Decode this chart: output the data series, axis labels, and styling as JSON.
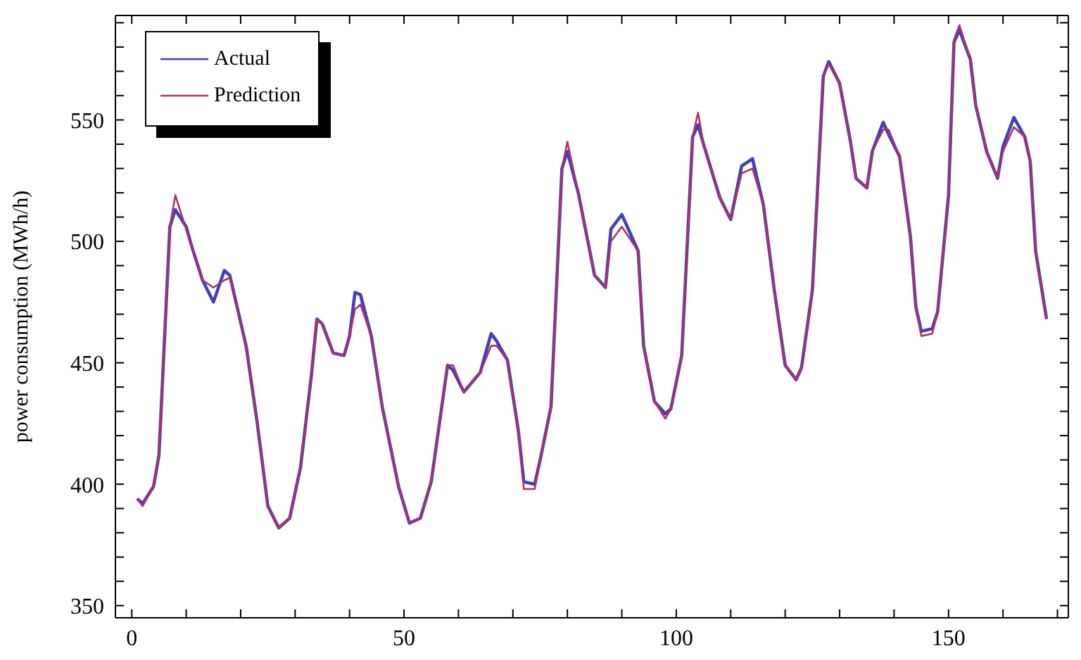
{
  "chart_data": {
    "type": "line",
    "ylabel": "power consumption (MWh/h)",
    "xlim": [
      -3,
      172
    ],
    "ylim": [
      345,
      593
    ],
    "xticks": [
      0,
      {
        "value": 10,
        "label": null
      },
      {
        "value": 20,
        "label": null
      },
      {
        "value": 30,
        "label": null
      },
      {
        "value": 40,
        "label": null
      },
      50,
      {
        "value": 60,
        "label": null
      },
      {
        "value": 70,
        "label": null
      },
      {
        "value": 80,
        "label": null
      },
      {
        "value": 90,
        "label": null
      },
      100,
      {
        "value": 110,
        "label": null
      },
      {
        "value": 120,
        "label": null
      },
      {
        "value": 130,
        "label": null
      },
      {
        "value": 140,
        "label": null
      },
      150,
      {
        "value": 160,
        "label": null
      },
      {
        "value": 170,
        "label": null
      }
    ],
    "yticks": [
      350,
      {
        "value": 360,
        "label": null
      },
      {
        "value": 370,
        "label": null
      },
      {
        "value": 380,
        "label": null
      },
      {
        "value": 390,
        "label": null
      },
      400,
      {
        "value": 410,
        "label": null
      },
      {
        "value": 420,
        "label": null
      },
      {
        "value": 430,
        "label": null
      },
      {
        "value": 440,
        "label": null
      },
      450,
      {
        "value": 460,
        "label": null
      },
      {
        "value": 470,
        "label": null
      },
      {
        "value": 480,
        "label": null
      },
      {
        "value": 490,
        "label": null
      },
      500,
      {
        "value": 510,
        "label": null
      },
      {
        "value": 520,
        "label": null
      },
      {
        "value": 530,
        "label": null
      },
      {
        "value": 540,
        "label": null
      },
      550,
      {
        "value": 560,
        "label": null
      },
      {
        "value": 570,
        "label": null
      },
      {
        "value": 580,
        "label": null
      },
      {
        "value": 590,
        "label": null
      }
    ],
    "legend": "top left",
    "x": [
      1,
      2,
      4,
      5,
      7,
      8,
      10,
      11,
      13,
      15,
      17,
      18,
      21,
      23,
      25,
      27,
      29,
      31,
      33,
      34,
      35,
      37,
      39,
      40,
      41,
      42,
      44,
      46,
      49,
      51,
      53,
      55,
      58,
      59,
      61,
      64,
      66,
      67,
      69,
      71,
      72,
      74,
      75,
      77,
      79,
      80,
      82,
      85,
      87,
      88,
      90,
      93,
      94,
      96,
      98,
      99,
      101,
      103,
      104,
      105,
      108,
      110,
      112,
      114,
      116,
      118,
      120,
      122,
      123,
      125,
      127,
      128,
      130,
      132,
      133,
      135,
      136,
      138,
      139,
      141,
      143,
      144,
      145,
      147,
      148,
      150,
      151,
      152,
      154,
      155,
      157,
      159,
      160,
      162,
      164,
      165,
      166,
      168
    ],
    "series": [
      {
        "name": "Actual",
        "color": "#4040b8",
        "values": [
          394,
          392,
          399,
          412,
          506,
          513,
          506,
          498,
          484,
          475,
          488,
          486,
          457,
          426,
          391,
          382,
          386,
          407,
          445,
          468,
          466,
          454,
          453,
          461,
          479,
          478,
          461,
          432,
          399,
          384,
          386,
          401,
          449,
          447,
          438,
          446,
          462,
          459,
          451,
          422,
          401,
          400,
          410,
          432,
          530,
          537,
          520,
          486,
          481,
          505,
          511,
          496,
          457,
          434,
          429,
          431,
          453,
          543,
          548,
          540,
          518,
          509,
          531,
          534,
          515,
          480,
          449,
          443,
          448,
          480,
          568,
          574,
          565,
          541,
          526,
          522,
          537,
          549,
          544,
          535,
          502,
          473,
          463,
          464,
          471,
          519,
          582,
          587,
          575,
          556,
          537,
          526,
          539,
          551,
          543,
          533,
          496,
          468
        ]
      },
      {
        "name": "Prediction",
        "color": "#b03068",
        "values": [
          394,
          391,
          399,
          412,
          506,
          519,
          505,
          498,
          484,
          481,
          484,
          485,
          457,
          426,
          391,
          382,
          386,
          407,
          445,
          468,
          466,
          454,
          453,
          461,
          472,
          474,
          461,
          432,
          399,
          384,
          386,
          401,
          449,
          449,
          438,
          446,
          457,
          457,
          451,
          422,
          398,
          398,
          410,
          432,
          530,
          541,
          520,
          486,
          481,
          500,
          506,
          496,
          457,
          434,
          427,
          431,
          453,
          543,
          553,
          540,
          518,
          509,
          528,
          530,
          515,
          480,
          449,
          443,
          448,
          480,
          568,
          573,
          565,
          541,
          526,
          522,
          537,
          546,
          546,
          535,
          502,
          473,
          461,
          462,
          471,
          519,
          583,
          589,
          575,
          556,
          537,
          526,
          537,
          547,
          543,
          533,
          496,
          468
        ]
      }
    ]
  }
}
